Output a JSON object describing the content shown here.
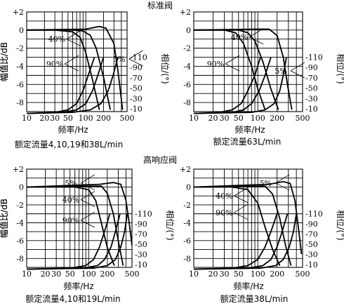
{
  "section_titles": {
    "standard": "标准阀",
    "high_response": "高响应阀"
  },
  "chart_data": [
    {
      "type": "line",
      "group": "标准阀",
      "caption": "额定流量4,10,19和38L/min",
      "xlabel": "频率/Hz",
      "ylabel_left": "幅值比/dB",
      "ylabel_right": "相位/(°)",
      "x_scale": "log",
      "xlim": [
        10,
        500
      ],
      "x_ticks": [
        "10",
        "20",
        "30",
        "50",
        "100",
        "200",
        "500"
      ],
      "y_left_ticks": [
        "+2",
        "0",
        "-2",
        "-4",
        "-6",
        "-8"
      ],
      "y_right_ticks": [
        "-110",
        "-90",
        "-70",
        "-50",
        "-30",
        "-10"
      ],
      "annotations": [
        "40%",
        "90%",
        "5%"
      ],
      "amplitude_series": [
        {
          "name": "90%",
          "x": [
            10,
            30,
            60,
            80,
            100,
            130,
            170
          ],
          "y": [
            0,
            0,
            -0.2,
            -0.8,
            -2.5,
            -5.5,
            -8.8
          ]
        },
        {
          "name": "40%",
          "x": [
            10,
            60,
            90,
            120,
            150,
            200,
            260
          ],
          "y": [
            0,
            0,
            -0.1,
            -0.6,
            -2.0,
            -5.2,
            -8.8
          ]
        },
        {
          "name": "5%",
          "x": [
            10,
            100,
            170,
            220,
            300,
            350,
            420
          ],
          "y": [
            0,
            0.1,
            0.4,
            0.2,
            -1.5,
            -4.5,
            -8.8
          ]
        }
      ],
      "phase_series": [
        {
          "name": "90%",
          "x": [
            10,
            30,
            50,
            70,
            90,
            110,
            140
          ],
          "y": [
            -1,
            -3,
            -8,
            -20,
            -45,
            -75,
            -110
          ]
        },
        {
          "name": "40%",
          "x": [
            10,
            40,
            70,
            100,
            130,
            160,
            200
          ],
          "y": [
            -1,
            -3,
            -8,
            -20,
            -45,
            -75,
            -110
          ]
        },
        {
          "name": "5%",
          "x": [
            10,
            60,
            120,
            180,
            240,
            290,
            350
          ],
          "y": [
            -1,
            -3,
            -8,
            -20,
            -45,
            -75,
            -110
          ]
        }
      ]
    },
    {
      "type": "line",
      "group": "标准阀",
      "caption": "额定流量63L/min",
      "xlabel": "频率/Hz",
      "ylabel_left": "幅值比/dB",
      "ylabel_right": "相位/(°)",
      "x_scale": "log",
      "xlim": [
        10,
        500
      ],
      "x_ticks": [
        "10",
        "20",
        "30",
        "50",
        "100",
        "200",
        "500"
      ],
      "y_left_ticks": [
        "+2",
        "0",
        "-2",
        "-4",
        "-6",
        "-8"
      ],
      "y_right_ticks": [
        "-110",
        "-90",
        "-70",
        "-50",
        "-30",
        "-10"
      ],
      "annotations": [
        "40%",
        "90%",
        "5%"
      ],
      "amplitude_series": [
        {
          "name": "90%",
          "x": [
            10,
            30,
            45,
            60,
            80,
            100,
            130
          ],
          "y": [
            0,
            0,
            -0.3,
            -1.5,
            -4.0,
            -6.5,
            -8.8
          ]
        },
        {
          "name": "40%",
          "x": [
            10,
            50,
            70,
            90,
            120,
            160,
            210
          ],
          "y": [
            0,
            0,
            -0.3,
            -1.2,
            -3.5,
            -6.5,
            -8.8
          ]
        },
        {
          "name": "5%",
          "x": [
            10,
            100,
            150,
            200,
            250,
            290,
            340
          ],
          "y": [
            0,
            0.1,
            0.1,
            -0.6,
            -3.0,
            -6.0,
            -8.8
          ]
        }
      ],
      "phase_series": [
        {
          "name": "90%",
          "x": [
            10,
            25,
            40,
            55,
            70,
            90,
            110
          ],
          "y": [
            -1,
            -3,
            -8,
            -20,
            -45,
            -75,
            -110
          ]
        },
        {
          "name": "40%",
          "x": [
            10,
            40,
            60,
            80,
            105,
            130,
            160
          ],
          "y": [
            -1,
            -3,
            -8,
            -20,
            -45,
            -75,
            -110
          ]
        },
        {
          "name": "5%",
          "x": [
            10,
            80,
            130,
            180,
            220,
            250,
            280
          ],
          "y": [
            -1,
            -3,
            -8,
            -20,
            -45,
            -75,
            -110
          ]
        }
      ]
    },
    {
      "type": "line",
      "group": "高响应阀",
      "caption": "额定流量4,10和19L/min",
      "xlabel": "频率/Hz",
      "ylabel_left": "幅值比/dB",
      "ylabel_right": "相位/(°)",
      "x_scale": "log",
      "xlim": [
        10,
        500
      ],
      "x_ticks": [
        "10",
        "20",
        "30",
        "50",
        "100",
        "200",
        "500"
      ],
      "y_left_ticks": [
        "+2",
        "0",
        "-2",
        "-4",
        "-6",
        "-8"
      ],
      "y_right_ticks": [
        "-110",
        "-90",
        "-70",
        "-50",
        "-30",
        "-10"
      ],
      "annotations": [
        "5%",
        "40%",
        "90%"
      ],
      "amplitude_series": [
        {
          "name": "90%",
          "x": [
            10,
            60,
            100,
            130,
            160,
            200,
            260
          ],
          "y": [
            0,
            0,
            -0.3,
            -1.5,
            -4.0,
            -6.8,
            -8.8
          ]
        },
        {
          "name": "40%",
          "x": [
            10,
            100,
            160,
            200,
            250,
            300,
            360
          ],
          "y": [
            0,
            0.1,
            0.1,
            -0.7,
            -3.0,
            -6.0,
            -8.8
          ]
        },
        {
          "name": "5%",
          "x": [
            10,
            150,
            250,
            330,
            400,
            450,
            500
          ],
          "y": [
            0,
            0.3,
            0.5,
            0.3,
            -1.5,
            -4.0,
            -6.5
          ]
        }
      ],
      "phase_series": [
        {
          "name": "90%",
          "x": [
            10,
            50,
            90,
            120,
            150,
            180,
            220
          ],
          "y": [
            -1,
            -3,
            -8,
            -20,
            -45,
            -75,
            -110
          ]
        },
        {
          "name": "40%",
          "x": [
            10,
            80,
            140,
            180,
            230,
            270,
            320
          ],
          "y": [
            -1,
            -3,
            -8,
            -20,
            -45,
            -75,
            -110
          ]
        },
        {
          "name": "5%",
          "x": [
            10,
            120,
            200,
            270,
            330,
            380,
            420
          ],
          "y": [
            -1,
            -3,
            -8,
            -20,
            -45,
            -75,
            -110
          ]
        }
      ]
    },
    {
      "type": "line",
      "group": "高响应阀",
      "caption": "额定流量38L/min",
      "xlabel": "频率/Hz",
      "ylabel_left": "幅值比/dB",
      "ylabel_right": "相位/(°)",
      "x_scale": "log",
      "xlim": [
        10,
        500
      ],
      "x_ticks": [
        "10",
        "20",
        "30",
        "50",
        "100",
        "200",
        "500"
      ],
      "y_left_ticks": [
        "+2",
        "0",
        "-2",
        "-4",
        "-6",
        "-8"
      ],
      "y_right_ticks": [
        "-110",
        "-90",
        "-70",
        "-50",
        "-30",
        "-10"
      ],
      "annotations": [
        "5%",
        "40%",
        "90%"
      ],
      "amplitude_series": [
        {
          "name": "90%",
          "x": [
            10,
            40,
            70,
            100,
            130,
            170,
            220
          ],
          "y": [
            0,
            0,
            -0.3,
            -1.8,
            -4.5,
            -7.0,
            -8.8
          ]
        },
        {
          "name": "40%",
          "x": [
            10,
            80,
            130,
            170,
            220,
            270,
            330
          ],
          "y": [
            0,
            0.1,
            0.1,
            -0.8,
            -3.5,
            -6.5,
            -8.8
          ]
        },
        {
          "name": "5%",
          "x": [
            10,
            150,
            250,
            320,
            380,
            430,
            480
          ],
          "y": [
            0,
            0.3,
            0.6,
            0.4,
            -1.5,
            -4.5,
            -7.5
          ]
        }
      ],
      "phase_series": [
        {
          "name": "90%",
          "x": [
            10,
            40,
            70,
            100,
            130,
            160,
            200
          ],
          "y": [
            -1,
            -3,
            -8,
            -20,
            -45,
            -75,
            -110
          ]
        },
        {
          "name": "40%",
          "x": [
            10,
            70,
            120,
            160,
            200,
            240,
            290
          ],
          "y": [
            -1,
            -3,
            -8,
            -20,
            -45,
            -75,
            -110
          ]
        },
        {
          "name": "5%",
          "x": [
            10,
            110,
            190,
            250,
            310,
            360,
            400
          ],
          "y": [
            -1,
            -3,
            -8,
            -20,
            -45,
            -75,
            -110
          ]
        }
      ]
    }
  ]
}
